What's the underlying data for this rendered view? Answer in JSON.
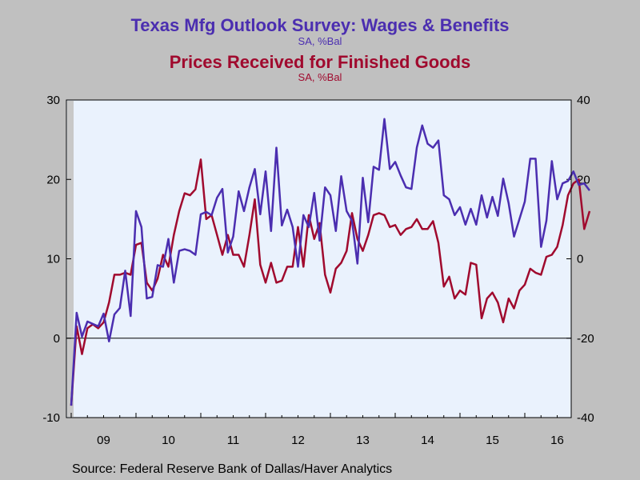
{
  "title_wages": "Texas Mfg Outlook Survey: Wages & Benefits",
  "subtitle_wages": "SA, %Bal",
  "title_prices": "Prices Received for Finished Goods",
  "subtitle_prices": "SA, %Bal",
  "source": "Source:  Federal Reserve Bank of Dallas/Haver Analytics",
  "colors": {
    "wages": "#4b2eb0",
    "prices": "#a00a2e",
    "plot_bg": "#eaf2fd",
    "frame_bg": "#c0c0c0",
    "recession": "#c8c8c8"
  },
  "chart_data": {
    "type": "line",
    "x_start": "2009-01",
    "x_end": "2016-12",
    "x_tick_labels": [
      "09",
      "10",
      "11",
      "12",
      "13",
      "14",
      "15",
      "16"
    ],
    "left_axis": {
      "ylim": [
        -10,
        30
      ],
      "ticks": [
        -10,
        0,
        10,
        20,
        30
      ]
    },
    "right_axis": {
      "ylim": [
        -40,
        40
      ],
      "ticks": [
        -40,
        -20,
        0,
        20,
        40
      ]
    },
    "reference_line": 0,
    "recession_shading": [
      "2009-01",
      "2009-06"
    ],
    "series": [
      {
        "name": "Texas Mfg Outlook Survey: Wages & Benefits",
        "axis": "left",
        "values": [
          -8.5,
          3.2,
          0.2,
          2.1,
          1.8,
          1.5,
          3.1,
          -0.4,
          3.0,
          3.8,
          8.5,
          2.8,
          16.0,
          14.0,
          5.0,
          5.2,
          9.2,
          9.0,
          12.5,
          7.0,
          11.0,
          11.2,
          11.0,
          10.5,
          15.6,
          15.9,
          15.5,
          17.7,
          18.8,
          10.8,
          12.8,
          18.5,
          16.0,
          19.0,
          21.3,
          15.6,
          21.0,
          13.5,
          24.0,
          14.2,
          16.2,
          14.0,
          9.0,
          15.5,
          14.0,
          18.3,
          12.3,
          19.0,
          18.0,
          13.5,
          20.4,
          16.0,
          14.8,
          9.4,
          20.2,
          14.6,
          21.6,
          21.2,
          27.6,
          21.3,
          22.2,
          20.5,
          19.0,
          18.8,
          24.0,
          26.8,
          24.5,
          24.0,
          24.9,
          18.0,
          17.5,
          15.5,
          16.5,
          14.3,
          16.3,
          14.3,
          18.0,
          15.2,
          17.8,
          15.4,
          20.1,
          17.0,
          12.8,
          15.0,
          17.2,
          22.6,
          22.6,
          11.5,
          14.8,
          22.3,
          17.5,
          19.5,
          19.8,
          21.0,
          19.3,
          19.5,
          18.6
        ]
      },
      {
        "name": "Prices Received for Finished Goods",
        "axis": "right",
        "values": [
          -37.0,
          -17.0,
          -24.0,
          -17.5,
          -16.5,
          -17.5,
          -16.0,
          -11.0,
          -4.0,
          -4.0,
          -3.5,
          -4.0,
          3.5,
          4.0,
          -6.0,
          -8.0,
          -5.0,
          1.0,
          -2.0,
          6.0,
          12.0,
          16.5,
          16.0,
          17.5,
          25.0,
          10.0,
          11.0,
          6.0,
          1.0,
          6.0,
          1.0,
          1.0,
          -2.0,
          6.0,
          15.0,
          -1.5,
          -6.0,
          -1.0,
          -6.0,
          -5.5,
          -2.0,
          -2.0,
          8.0,
          -2.0,
          11.0,
          5.0,
          9.0,
          -4.0,
          -8.5,
          -2.5,
          -1.0,
          2.0,
          11.5,
          5.0,
          2.0,
          6.0,
          11.0,
          11.5,
          11.0,
          8.0,
          8.5,
          6.0,
          7.5,
          8.0,
          10.0,
          7.5,
          7.5,
          9.5,
          4.0,
          -7.0,
          -4.5,
          -10.0,
          -8.0,
          -9.0,
          -1.0,
          -1.5,
          -15.0,
          -10.0,
          -8.5,
          -11.0,
          -16.0,
          -10.0,
          -12.5,
          -8.0,
          -6.5,
          -2.5,
          -3.5,
          -4.0,
          0.5,
          1.0,
          3.0,
          8.5,
          16.0,
          19.0,
          20.0,
          7.5,
          12.0
        ]
      }
    ]
  }
}
